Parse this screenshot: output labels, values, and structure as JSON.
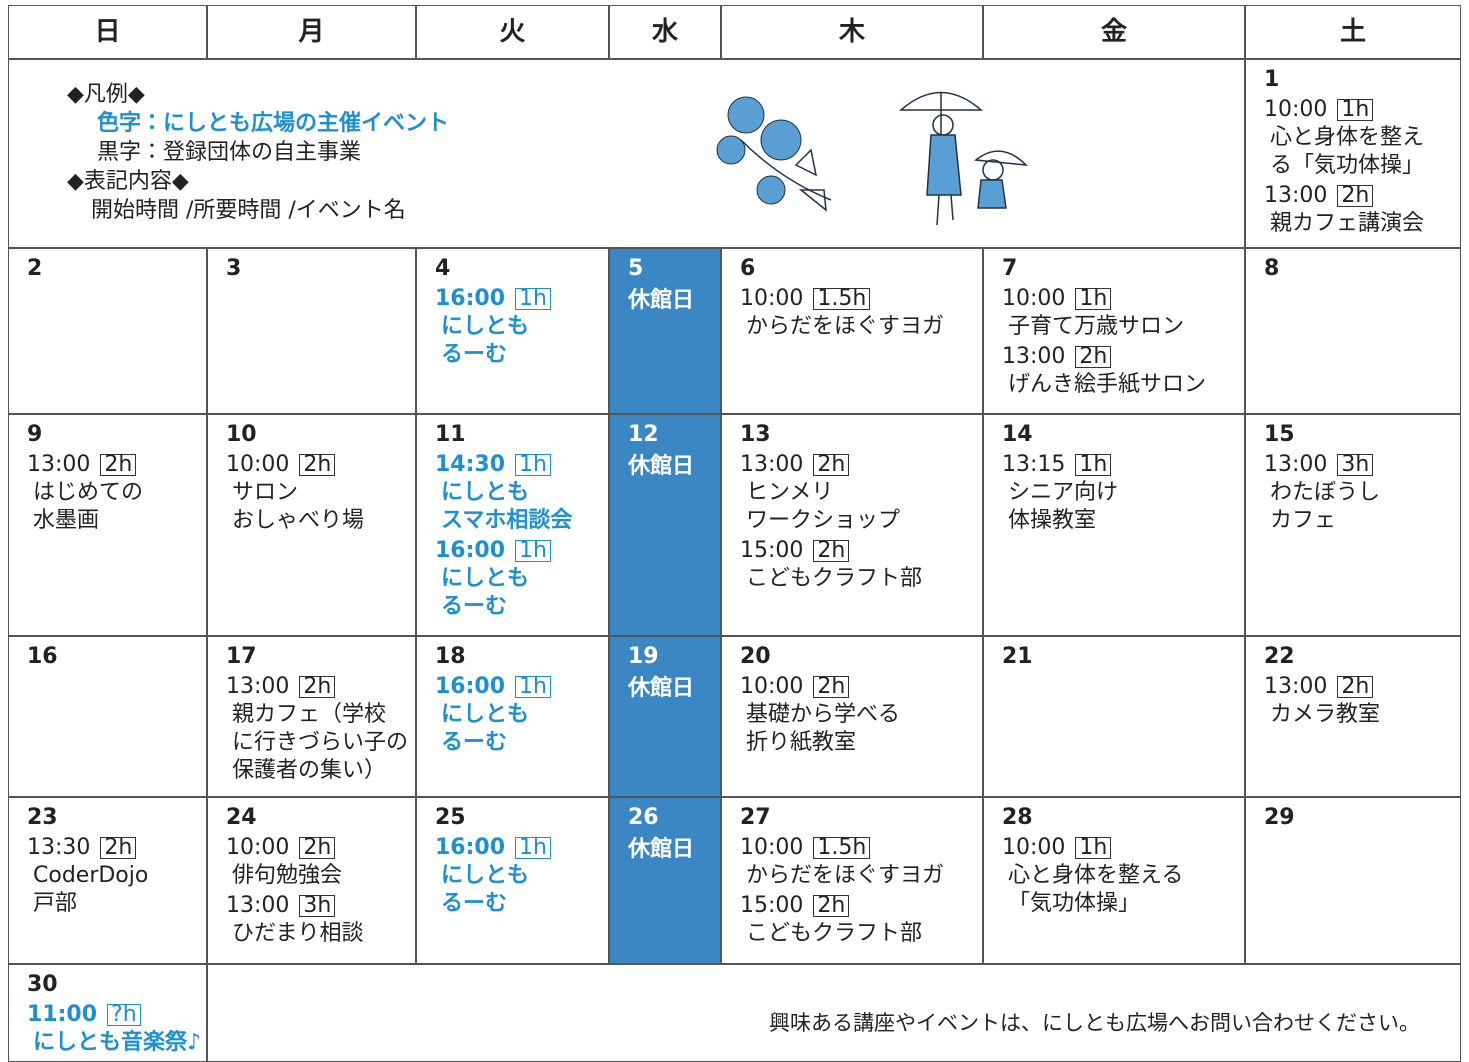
{
  "weekdays": [
    "日",
    "月",
    "火",
    "水",
    "木",
    "金",
    "土"
  ],
  "legend": {
    "title": "◆凡例◆",
    "host": "色字：にしとも広場の主催イベント",
    "member": "黒字：登録団体の自主事業",
    "format_title": "◆表記内容◆",
    "format": "開始時間 /所要時間 /イベント名"
  },
  "days": [
    {
      "day": 1,
      "events": [
        {
          "time": "10:00",
          "duration": "1h",
          "name": "心と身体を整え\nる「気功体操」"
        },
        {
          "time": "13:00",
          "duration": "2h",
          "name": "親カフェ講演会"
        }
      ]
    },
    {
      "day": 2
    },
    {
      "day": 3
    },
    {
      "day": 4,
      "events": [
        {
          "time": "16:00",
          "duration": "1h",
          "name": "にしとも\nるーむ",
          "host": true
        }
      ]
    },
    {
      "day": 5,
      "closed": "休館日"
    },
    {
      "day": 6,
      "events": [
        {
          "time": "10:00",
          "duration": "1.5h",
          "name": "からだをほぐすヨガ"
        }
      ]
    },
    {
      "day": 7,
      "events": [
        {
          "time": "10:00",
          "duration": "1h",
          "name": "子育て万歳サロン"
        },
        {
          "time": "13:00",
          "duration": "2h",
          "name": "げんき絵手紙サロン"
        }
      ]
    },
    {
      "day": 8
    },
    {
      "day": 9,
      "events": [
        {
          "time": "13:00",
          "duration": "2h",
          "name": "はじめての\n水墨画"
        }
      ]
    },
    {
      "day": 10,
      "events": [
        {
          "time": "10:00",
          "duration": "2h",
          "name": "サロン\nおしゃべり場"
        }
      ]
    },
    {
      "day": 11,
      "events": [
        {
          "time": "14:30",
          "duration": "1h",
          "name": "にしとも\nスマホ相談会",
          "host": true
        },
        {
          "time": "16:00",
          "duration": "1h",
          "name": "にしとも\nるーむ",
          "host": true
        }
      ]
    },
    {
      "day": 12,
      "closed": "休館日"
    },
    {
      "day": 13,
      "events": [
        {
          "time": "13:00",
          "duration": "2h",
          "name": "ヒンメリ\nワークショップ"
        },
        {
          "time": "15:00",
          "duration": "2h",
          "name": "こどもクラフト部"
        }
      ]
    },
    {
      "day": 14,
      "events": [
        {
          "time": "13:15",
          "duration": "1h",
          "name": "シニア向け\n体操教室"
        }
      ]
    },
    {
      "day": 15,
      "events": [
        {
          "time": "13:00",
          "duration": "3h",
          "name": "わたぼうし\nカフェ"
        }
      ]
    },
    {
      "day": 16
    },
    {
      "day": 17,
      "events": [
        {
          "time": "13:00",
          "duration": "2h",
          "name": "親カフェ（学校\nに行きづらい子の\n保護者の集い）"
        }
      ]
    },
    {
      "day": 18,
      "events": [
        {
          "time": "16:00",
          "duration": "1h",
          "name": "にしとも\nるーむ",
          "host": true
        }
      ]
    },
    {
      "day": 19,
      "closed": "休館日"
    },
    {
      "day": 20,
      "events": [
        {
          "time": "10:00",
          "duration": "2h",
          "name": "基礎から学べる\n折り紙教室"
        }
      ]
    },
    {
      "day": 21
    },
    {
      "day": 22,
      "events": [
        {
          "time": "13:00",
          "duration": "2h",
          "name": "カメラ教室"
        }
      ]
    },
    {
      "day": 23,
      "events": [
        {
          "time": "13:30",
          "duration": "2h",
          "name": "CoderDojo\n戸部"
        }
      ]
    },
    {
      "day": 24,
      "events": [
        {
          "time": "10:00",
          "duration": "2h",
          "name": "俳句勉強会"
        },
        {
          "time": "13:00",
          "duration": "3h",
          "name": "ひだまり相談"
        }
      ]
    },
    {
      "day": 25,
      "events": [
        {
          "time": "16:00",
          "duration": "1h",
          "name": "にしとも\nるーむ",
          "host": true
        }
      ]
    },
    {
      "day": 26,
      "closed": "休館日"
    },
    {
      "day": 27,
      "events": [
        {
          "time": "10:00",
          "duration": "1.5h",
          "name": "からだをほぐすヨガ"
        },
        {
          "time": "15:00",
          "duration": "2h",
          "name": "こどもクラフト部"
        }
      ]
    },
    {
      "day": 28,
      "events": [
        {
          "time": "10:00",
          "duration": "1h",
          "name": "心と身体を整える\n「気功体操」"
        }
      ]
    },
    {
      "day": 29
    },
    {
      "day": 30,
      "events": [
        {
          "time": "11:00",
          "duration": "?h",
          "name": "にしとも音楽祭♪",
          "host": true
        }
      ]
    }
  ],
  "footer": "興味ある講座やイベントは、にしとも広場へお問い合わせください。"
}
